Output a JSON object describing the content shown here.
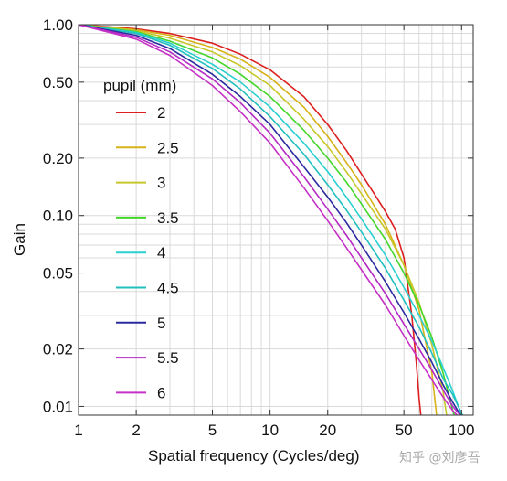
{
  "chart_data": {
    "type": "line",
    "xlabel": "Spatial frequency (Cycles/deg)",
    "ylabel": "Gain",
    "x_scale": "log",
    "y_scale": "log",
    "xlim": [
      1,
      115
    ],
    "ylim": [
      0.009,
      1.0
    ],
    "x_ticks": [
      {
        "value": 1,
        "label": "1"
      },
      {
        "value": 2,
        "label": "2"
      },
      {
        "value": 5,
        "label": "5"
      },
      {
        "value": 10,
        "label": "10"
      },
      {
        "value": 20,
        "label": "20"
      },
      {
        "value": 50,
        "label": "50"
      },
      {
        "value": 100,
        "label": "100"
      }
    ],
    "y_ticks": [
      {
        "value": 0.01,
        "label": "0.01"
      },
      {
        "value": 0.02,
        "label": "0.02"
      },
      {
        "value": 0.05,
        "label": "0.05"
      },
      {
        "value": 0.1,
        "label": "0.10"
      },
      {
        "value": 0.2,
        "label": "0.20"
      },
      {
        "value": 0.5,
        "label": "0.50"
      },
      {
        "value": 1.0,
        "label": "1.00"
      }
    ],
    "grid": true,
    "legend": {
      "title": "pupil (mm)",
      "position": "left"
    },
    "series": [
      {
        "name": "2",
        "color": "#dd1f1f",
        "x": [
          1,
          2,
          3,
          5,
          7,
          10,
          15,
          20,
          25,
          30,
          35,
          40,
          45,
          50,
          55,
          58,
          60,
          62
        ],
        "y": [
          1.0,
          0.95,
          0.9,
          0.8,
          0.7,
          0.58,
          0.42,
          0.3,
          0.22,
          0.165,
          0.13,
          0.105,
          0.085,
          0.06,
          0.03,
          0.017,
          0.011,
          0.008
        ]
      },
      {
        "name": "2.5",
        "color": "#d7b21a",
        "x": [
          1,
          2,
          3,
          5,
          7,
          10,
          15,
          20,
          25,
          30,
          40,
          50,
          60,
          70,
          75
        ],
        "y": [
          1.0,
          0.94,
          0.88,
          0.76,
          0.66,
          0.53,
          0.37,
          0.26,
          0.19,
          0.145,
          0.09,
          0.055,
          0.032,
          0.015,
          0.008
        ]
      },
      {
        "name": "3",
        "color": "#c8c82a",
        "x": [
          1,
          2,
          3,
          5,
          7,
          10,
          15,
          20,
          25,
          30,
          40,
          50,
          60,
          70,
          80,
          85
        ],
        "y": [
          1.0,
          0.93,
          0.85,
          0.72,
          0.61,
          0.48,
          0.32,
          0.23,
          0.17,
          0.13,
          0.085,
          0.055,
          0.035,
          0.021,
          0.012,
          0.008
        ]
      },
      {
        "name": "3.5",
        "color": "#44d62a",
        "x": [
          1,
          2,
          3,
          5,
          7,
          10,
          15,
          20,
          25,
          30,
          40,
          50,
          60,
          70,
          80,
          90,
          95
        ],
        "y": [
          1.0,
          0.92,
          0.82,
          0.67,
          0.55,
          0.42,
          0.28,
          0.2,
          0.15,
          0.115,
          0.075,
          0.05,
          0.034,
          0.023,
          0.015,
          0.0095,
          0.008
        ]
      },
      {
        "name": "4",
        "color": "#2acfcf",
        "x": [
          1,
          2,
          3,
          5,
          7,
          10,
          15,
          20,
          25,
          30,
          40,
          50,
          60,
          70,
          80,
          90,
          100,
          105
        ],
        "y": [
          1.0,
          0.91,
          0.8,
          0.62,
          0.5,
          0.37,
          0.24,
          0.17,
          0.125,
          0.096,
          0.062,
          0.042,
          0.03,
          0.022,
          0.016,
          0.012,
          0.009,
          0.008
        ]
      },
      {
        "name": "4.5",
        "color": "#22bfbf",
        "x": [
          1,
          2,
          3,
          5,
          7,
          10,
          15,
          20,
          25,
          30,
          40,
          50,
          60,
          70,
          80,
          90,
          100,
          108
        ],
        "y": [
          1.0,
          0.9,
          0.78,
          0.59,
          0.46,
          0.33,
          0.21,
          0.145,
          0.107,
          0.082,
          0.053,
          0.036,
          0.026,
          0.019,
          0.014,
          0.0115,
          0.0092,
          0.008
        ]
      },
      {
        "name": "5",
        "color": "#2a2aa0",
        "x": [
          1,
          2,
          3,
          5,
          7,
          10,
          15,
          20,
          25,
          30,
          40,
          50,
          60,
          70,
          80,
          90,
          100,
          110
        ],
        "y": [
          1.0,
          0.88,
          0.75,
          0.55,
          0.42,
          0.3,
          0.18,
          0.125,
          0.092,
          0.07,
          0.045,
          0.031,
          0.0225,
          0.017,
          0.013,
          0.0105,
          0.0088,
          0.008
        ]
      },
      {
        "name": "5.5",
        "color": "#b52ac4",
        "x": [
          1,
          2,
          3,
          5,
          7,
          10,
          15,
          20,
          25,
          30,
          40,
          50,
          60,
          70,
          80,
          90,
          100,
          110
        ],
        "y": [
          1.0,
          0.86,
          0.72,
          0.52,
          0.39,
          0.27,
          0.16,
          0.108,
          0.079,
          0.06,
          0.039,
          0.027,
          0.02,
          0.0155,
          0.0122,
          0.01,
          0.0088,
          0.008
        ]
      },
      {
        "name": "6",
        "color": "#c630c6",
        "x": [
          1,
          2,
          3,
          5,
          7,
          10,
          15,
          20,
          25,
          30,
          40,
          50,
          60,
          70,
          80,
          90,
          100,
          110
        ],
        "y": [
          1.0,
          0.84,
          0.69,
          0.48,
          0.35,
          0.24,
          0.14,
          0.094,
          0.068,
          0.052,
          0.034,
          0.0235,
          0.0175,
          0.0138,
          0.0112,
          0.0095,
          0.0085,
          0.008
        ]
      }
    ]
  },
  "watermark": "知乎 @刘彦吾"
}
